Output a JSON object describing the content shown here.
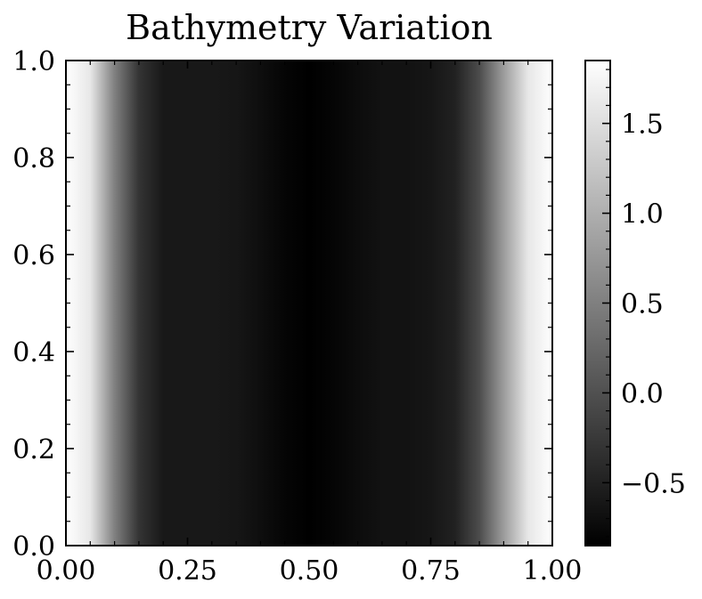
{
  "chart_data": {
    "type": "heatmap",
    "title": "Bathymetry Variation",
    "xlabel": "",
    "ylabel": "",
    "xlim": [
      0.0,
      1.0
    ],
    "ylim": [
      0.0,
      1.0
    ],
    "x_ticks": [
      "0.00",
      "0.25",
      "0.50",
      "0.75",
      "1.00"
    ],
    "y_ticks": [
      "0.0",
      "0.2",
      "0.4",
      "0.6",
      "0.8",
      "1.0"
    ],
    "x": [
      0.0,
      0.05,
      0.1,
      0.15,
      0.2,
      0.25,
      0.3,
      0.35,
      0.4,
      0.45,
      0.5,
      0.55,
      0.6,
      0.65,
      0.7,
      0.75,
      0.8,
      0.85,
      0.9,
      0.95,
      1.0
    ],
    "values": [
      1.85,
      1.6,
      0.5,
      -0.3,
      -0.6,
      -0.6,
      -0.6,
      -0.62,
      -0.7,
      -0.8,
      -0.85,
      -0.8,
      -0.72,
      -0.66,
      -0.66,
      -0.62,
      -0.5,
      -0.05,
      0.8,
      1.6,
      1.85
    ],
    "varies_along": "x",
    "colormap": "gray",
    "colorbar": {
      "vmin": -0.85,
      "vmax": 1.85,
      "ticks": [
        {
          "value": -0.5,
          "label": "−0.5"
        },
        {
          "value": 0.0,
          "label": "0.0"
        },
        {
          "value": 0.5,
          "label": "0.5"
        },
        {
          "value": 1.0,
          "label": "1.0"
        },
        {
          "value": 1.5,
          "label": "1.5"
        }
      ]
    },
    "grid": false,
    "legend": "none"
  }
}
